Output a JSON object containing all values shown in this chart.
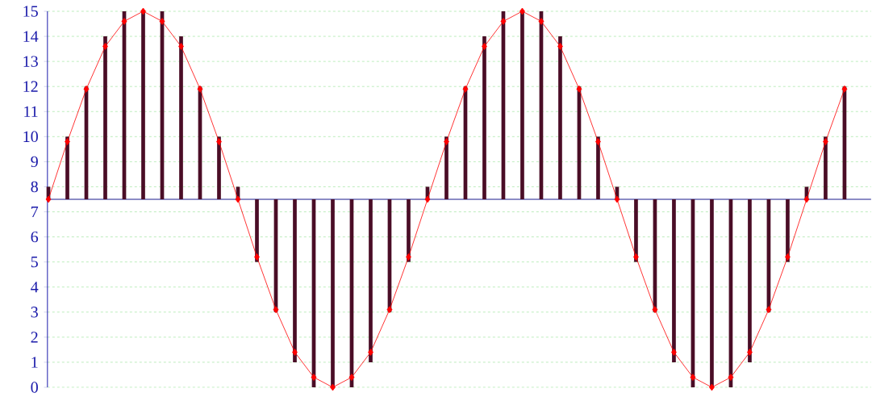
{
  "chart_data": {
    "type": "bar",
    "categories": [
      null,
      null,
      null,
      null,
      null,
      null,
      null,
      null,
      null,
      null,
      null,
      null,
      null,
      null,
      null,
      null,
      null,
      null,
      null,
      null,
      null,
      null,
      null,
      null,
      null,
      null,
      null,
      null,
      null,
      null,
      null,
      null,
      null,
      null,
      null,
      null,
      null,
      null,
      null,
      null,
      null,
      null,
      null
    ],
    "series": [
      {
        "color": "#4a0d26",
        "base": [
          7.5,
          7.5,
          7.5,
          7.5,
          7.5,
          7.5,
          7.5,
          7.5,
          7.5,
          7.5,
          7.5,
          7.5,
          7.5,
          7.5,
          7.5,
          7.5,
          7.5,
          7.5,
          7.5,
          7.5,
          7.5,
          7.5,
          7.5,
          7.5,
          7.5,
          7.5,
          7.5,
          7.5,
          7.5,
          7.5,
          7.5,
          7.5,
          7.5,
          7.5,
          7.5,
          7.5,
          7.5,
          7.5,
          7.5,
          7.5,
          7.5,
          7.5,
          7.5
        ],
        "values": [
          0.5,
          2.5,
          4.5,
          6.5,
          7.5,
          7.5,
          7.5,
          6.5,
          4.5,
          2.5,
          0.5,
          -2.5,
          -4.5,
          -6.5,
          -7.5,
          -7.5,
          -7.5,
          -6.5,
          -4.5,
          -2.5,
          0.5,
          2.5,
          4.5,
          6.5,
          7.5,
          7.5,
          7.5,
          6.5,
          4.5,
          2.5,
          0.5,
          -2.5,
          -4.5,
          -6.5,
          -7.5,
          -7.5,
          -7.5,
          -6.5,
          -4.5,
          -2.5,
          0.5,
          2.5,
          4.5
        ]
      },
      {
        "type": "line",
        "color": "#ff0000",
        "marker": "diamond",
        "line_style": "solid",
        "values": [
          7.5,
          9.8,
          11.9,
          13.6,
          14.6,
          15,
          14.6,
          13.6,
          11.9,
          9.8,
          7.5,
          5.2,
          3.1,
          1.4,
          0.4,
          0,
          0.4,
          1.4,
          3.1,
          5.2,
          7.5,
          9.8,
          11.9,
          13.6,
          14.6,
          15,
          14.6,
          13.6,
          11.9,
          9.8,
          7.5,
          5.2,
          3.1,
          1.4,
          0.4,
          0,
          0.4,
          1.4,
          3.1,
          5.2,
          7.5,
          9.8,
          11.9
        ]
      }
    ],
    "ylim": [
      0,
      15
    ],
    "yticks": [
      0,
      1,
      2,
      3,
      4,
      5,
      6,
      7,
      8,
      9,
      10,
      11,
      12,
      13,
      14,
      15
    ],
    "grid": "y",
    "ref_lines": [
      {
        "axis": "y",
        "value": 7.5,
        "color": "#1a1a8c"
      }
    ]
  }
}
